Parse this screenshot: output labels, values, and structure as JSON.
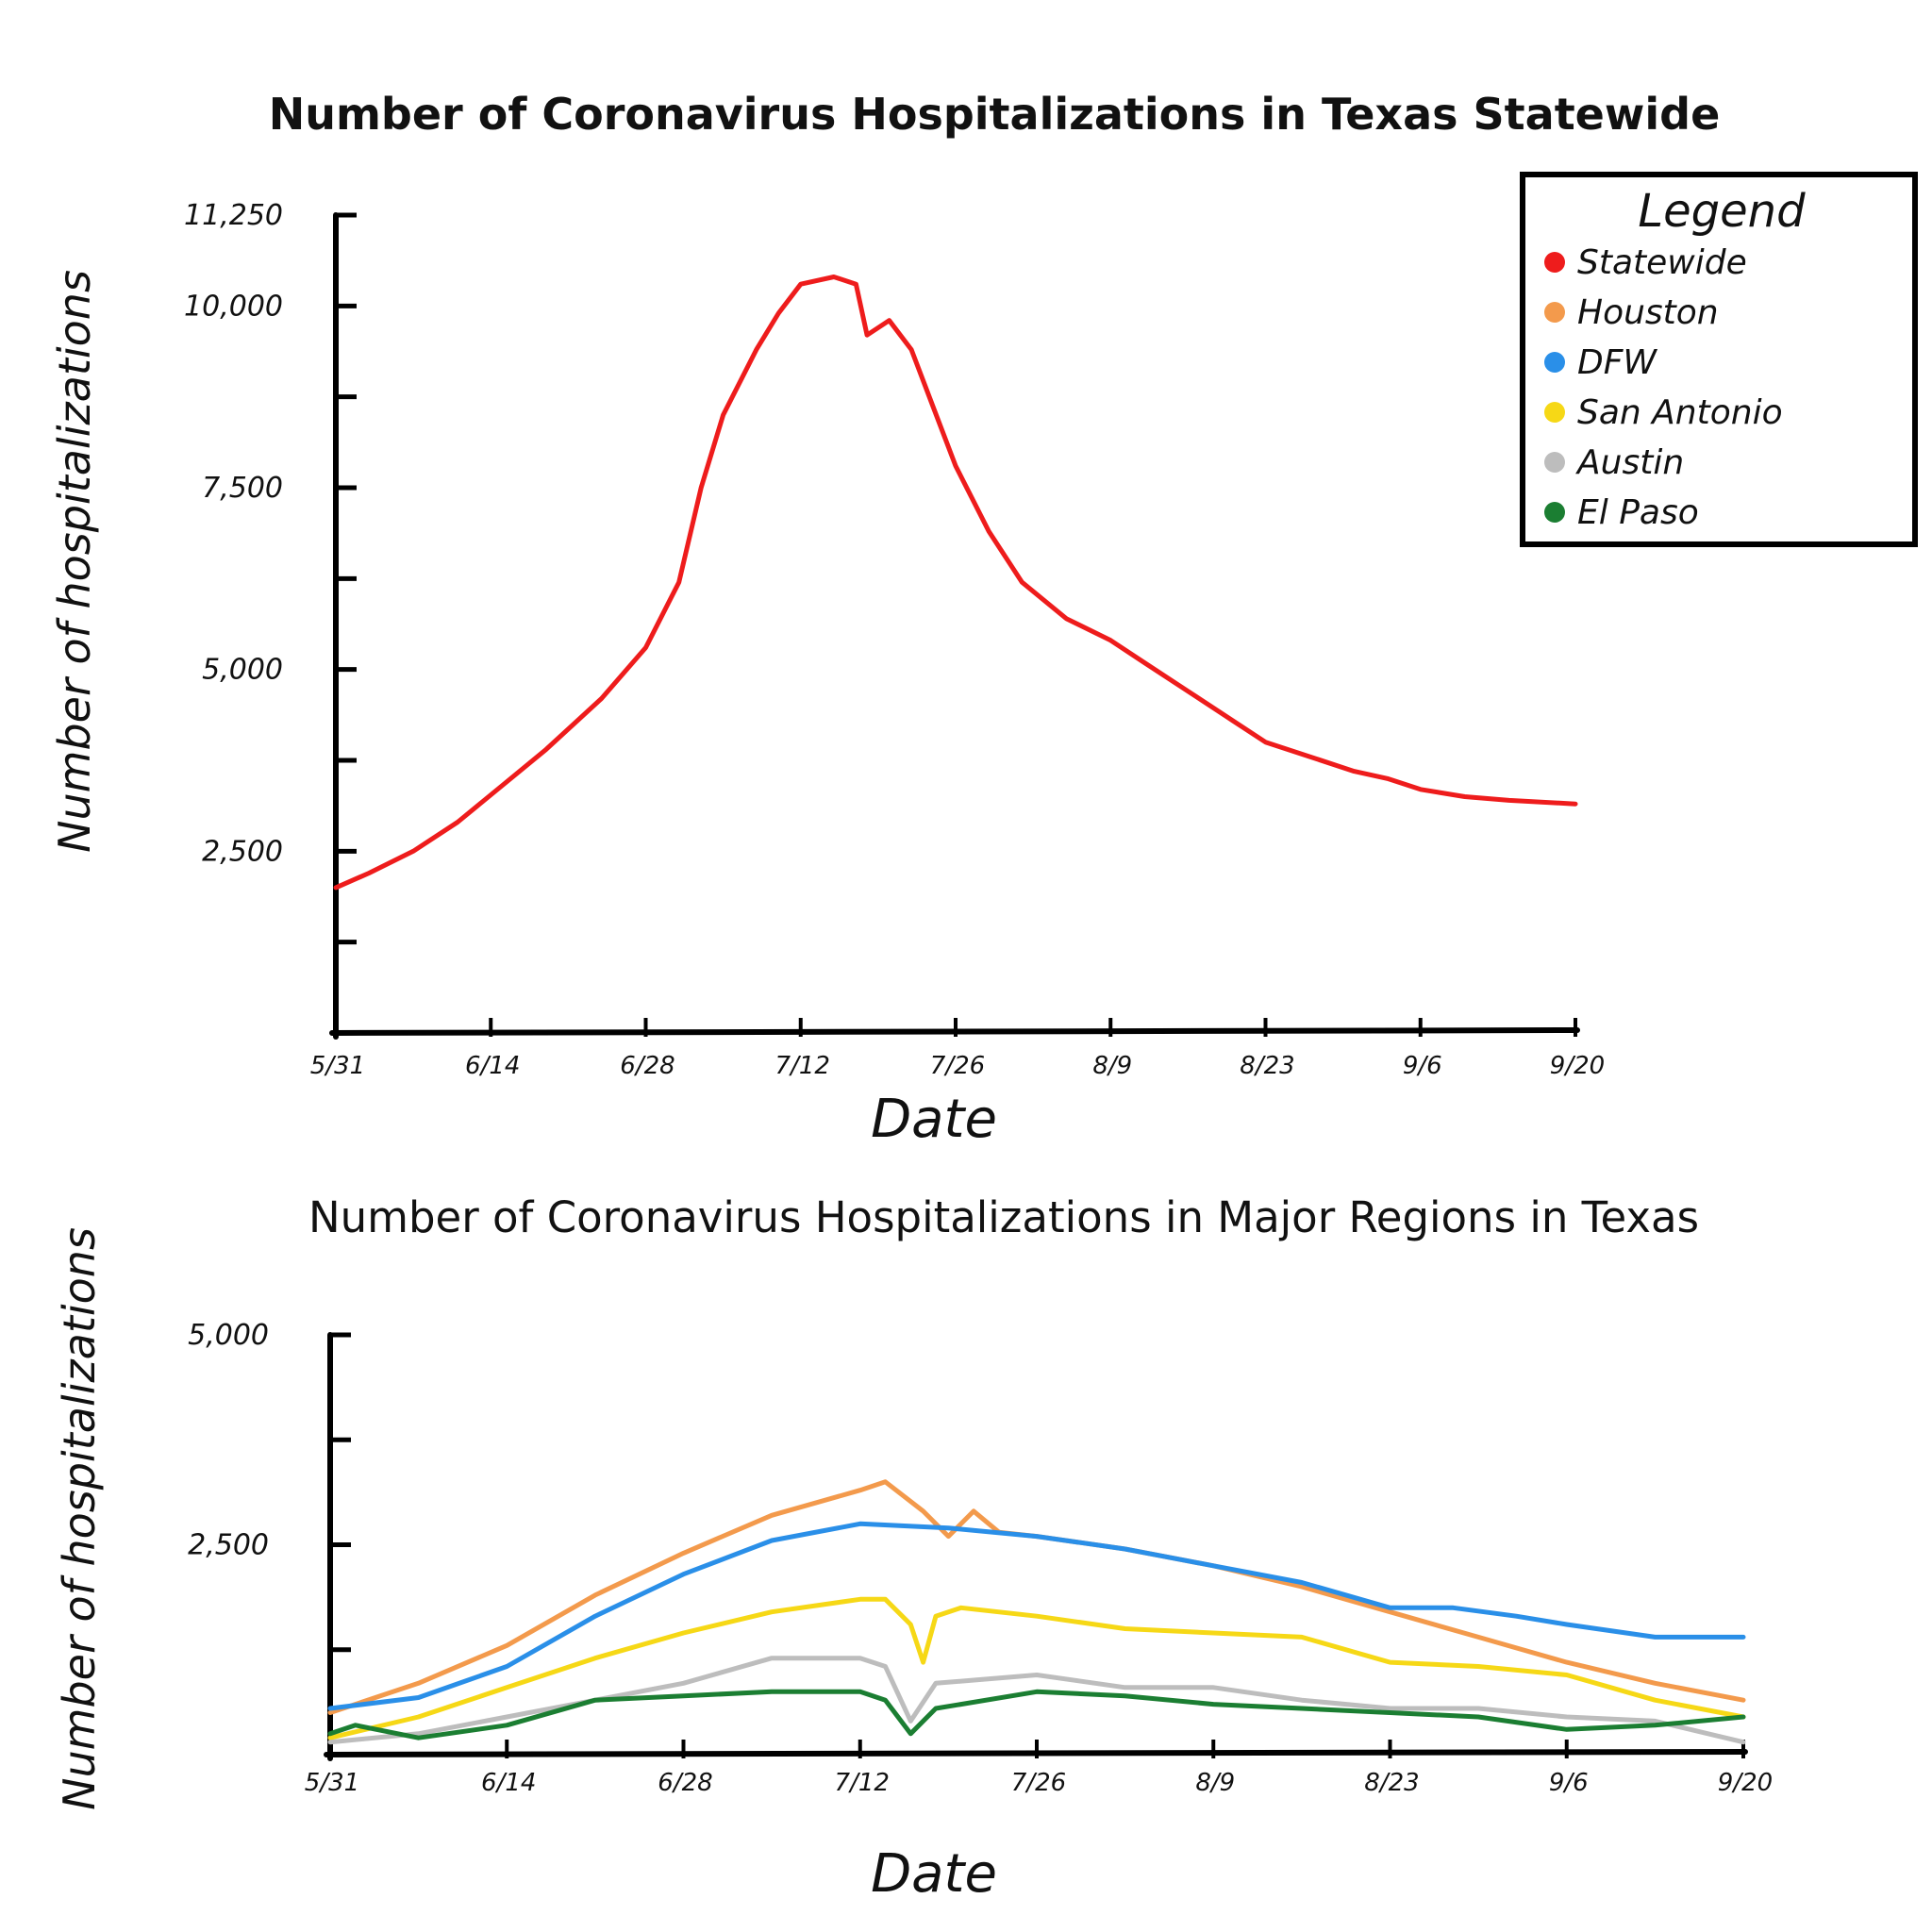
{
  "chart_data": [
    {
      "type": "line",
      "title": "Number of Coronavirus Hospitalizations in Texas Statewide",
      "xlabel": "Date",
      "ylabel": "Number of hospitalizations",
      "x_ticks": [
        "5/31",
        "6/14",
        "6/28",
        "7/12",
        "7/26",
        "8/9",
        "8/23",
        "9/6",
        "9/20"
      ],
      "y_ticks": [
        "2,500",
        "5,000",
        "7,500",
        "10,000",
        "11,250"
      ],
      "y_tick_values": [
        2500,
        5000,
        7500,
        10000,
        11250
      ],
      "ylim": [
        0,
        11250
      ],
      "legend_position": "top-right",
      "series": [
        {
          "name": "Statewide",
          "color": "#ee1c1c",
          "points": [
            [
              "5/31",
              2000
            ],
            [
              "6/3",
              2200
            ],
            [
              "6/7",
              2500
            ],
            [
              "6/11",
              2900
            ],
            [
              "6/15",
              3400
            ],
            [
              "6/19",
              3900
            ],
            [
              "6/24",
              4600
            ],
            [
              "6/28",
              5300
            ],
            [
              "7/1",
              6200
            ],
            [
              "7/3",
              7500
            ],
            [
              "7/5",
              8500
            ],
            [
              "7/8",
              9400
            ],
            [
              "7/10",
              9900
            ],
            [
              "7/12",
              10300
            ],
            [
              "7/15",
              10400
            ],
            [
              "7/17",
              10300
            ],
            [
              "7/18",
              9600
            ],
            [
              "7/20",
              9800
            ],
            [
              "7/22",
              9400
            ],
            [
              "7/24",
              8600
            ],
            [
              "7/26",
              7800
            ],
            [
              "7/29",
              6900
            ],
            [
              "8/1",
              6200
            ],
            [
              "8/5",
              5700
            ],
            [
              "8/9",
              5400
            ],
            [
              "8/12",
              5100
            ],
            [
              "8/16",
              4700
            ],
            [
              "8/20",
              4300
            ],
            [
              "8/23",
              4000
            ],
            [
              "8/27",
              3800
            ],
            [
              "8/31",
              3600
            ],
            [
              "9/3",
              3500
            ],
            [
              "9/6",
              3350
            ],
            [
              "9/10",
              3250
            ],
            [
              "9/14",
              3200
            ],
            [
              "9/20",
              3150
            ]
          ]
        }
      ]
    },
    {
      "type": "line",
      "title": "Number of Coronavirus Hospitalizations in Major Regions in Texas",
      "xlabel": "Date",
      "ylabel": "Number of hospitalizations",
      "x_ticks": [
        "5/31",
        "6/14",
        "6/28",
        "7/12",
        "7/26",
        "8/9",
        "8/23",
        "9/6",
        "9/20"
      ],
      "y_ticks": [
        "2,500",
        "5,000"
      ],
      "y_tick_values": [
        2500,
        5000
      ],
      "ylim": [
        0,
        5000
      ],
      "series": [
        {
          "name": "Houston",
          "color": "#f39a4c",
          "points": [
            [
              "5/31",
              500
            ],
            [
              "6/7",
              850
            ],
            [
              "6/14",
              1300
            ],
            [
              "6/21",
              1900
            ],
            [
              "6/28",
              2400
            ],
            [
              "7/5",
              2850
            ],
            [
              "7/12",
              3150
            ],
            [
              "7/14",
              3250
            ],
            [
              "7/17",
              2900
            ],
            [
              "7/19",
              2600
            ],
            [
              "7/21",
              2900
            ],
            [
              "7/23",
              2650
            ],
            [
              "7/26",
              2600
            ],
            [
              "8/2",
              2450
            ],
            [
              "8/9",
              2250
            ],
            [
              "8/16",
              2000
            ],
            [
              "8/23",
              1700
            ],
            [
              "8/30",
              1400
            ],
            [
              "9/6",
              1100
            ],
            [
              "9/13",
              850
            ],
            [
              "9/20",
              650
            ]
          ]
        },
        {
          "name": "DFW",
          "color": "#2a8fe8",
          "points": [
            [
              "5/31",
              550
            ],
            [
              "6/7",
              680
            ],
            [
              "6/14",
              1050
            ],
            [
              "6/21",
              1650
            ],
            [
              "6/28",
              2150
            ],
            [
              "7/5",
              2550
            ],
            [
              "7/12",
              2750
            ],
            [
              "7/19",
              2700
            ],
            [
              "7/26",
              2600
            ],
            [
              "8/2",
              2450
            ],
            [
              "8/9",
              2250
            ],
            [
              "8/16",
              2050
            ],
            [
              "8/23",
              1750
            ],
            [
              "8/28",
              1750
            ],
            [
              "9/2",
              1650
            ],
            [
              "9/6",
              1550
            ],
            [
              "9/13",
              1400
            ],
            [
              "9/20",
              1400
            ]
          ]
        },
        {
          "name": "San Antonio",
          "color": "#f6d816",
          "points": [
            [
              "5/31",
              200
            ],
            [
              "6/7",
              450
            ],
            [
              "6/14",
              800
            ],
            [
              "6/21",
              1150
            ],
            [
              "6/28",
              1450
            ],
            [
              "7/5",
              1700
            ],
            [
              "7/12",
              1850
            ],
            [
              "7/14",
              1850
            ],
            [
              "7/16",
              1550
            ],
            [
              "7/17",
              1100
            ],
            [
              "7/18",
              1650
            ],
            [
              "7/20",
              1750
            ],
            [
              "7/26",
              1650
            ],
            [
              "8/2",
              1500
            ],
            [
              "8/9",
              1450
            ],
            [
              "8/16",
              1400
            ],
            [
              "8/23",
              1100
            ],
            [
              "8/30",
              1050
            ],
            [
              "9/6",
              950
            ],
            [
              "9/13",
              650
            ],
            [
              "9/20",
              450
            ]
          ]
        },
        {
          "name": "Austin",
          "color": "#bdbdbd",
          "points": [
            [
              "5/31",
              150
            ],
            [
              "6/7",
              250
            ],
            [
              "6/14",
              450
            ],
            [
              "6/21",
              650
            ],
            [
              "6/28",
              850
            ],
            [
              "7/5",
              1150
            ],
            [
              "7/12",
              1150
            ],
            [
              "7/14",
              1050
            ],
            [
              "7/16",
              400
            ],
            [
              "7/18",
              850
            ],
            [
              "7/26",
              950
            ],
            [
              "8/2",
              800
            ],
            [
              "8/9",
              800
            ],
            [
              "8/16",
              650
            ],
            [
              "8/23",
              550
            ],
            [
              "8/30",
              550
            ],
            [
              "9/6",
              450
            ],
            [
              "9/13",
              400
            ],
            [
              "9/20",
              150
            ]
          ]
        },
        {
          "name": "El Paso",
          "color": "#1b7e32",
          "points": [
            [
              "5/31",
              250
            ],
            [
              "6/2",
              350
            ],
            [
              "6/7",
              200
            ],
            [
              "6/14",
              350
            ],
            [
              "6/21",
              650
            ],
            [
              "6/28",
              700
            ],
            [
              "7/5",
              750
            ],
            [
              "7/12",
              750
            ],
            [
              "7/14",
              650
            ],
            [
              "7/16",
              250
            ],
            [
              "7/18",
              550
            ],
            [
              "7/26",
              750
            ],
            [
              "8/2",
              700
            ],
            [
              "8/9",
              600
            ],
            [
              "8/16",
              550
            ],
            [
              "8/23",
              500
            ],
            [
              "8/30",
              450
            ],
            [
              "9/6",
              300
            ],
            [
              "9/13",
              350
            ],
            [
              "9/20",
              450
            ]
          ]
        }
      ]
    }
  ],
  "legend": {
    "title": "Legend",
    "items": [
      {
        "label": "Statewide",
        "color": "#ee1c1c"
      },
      {
        "label": "Houston",
        "color": "#f39a4c"
      },
      {
        "label": "DFW",
        "color": "#2a8fe8"
      },
      {
        "label": "San Antonio",
        "color": "#f6d816"
      },
      {
        "label": "Austin",
        "color": "#bdbdbd"
      },
      {
        "label": "El Paso",
        "color": "#1b7e32"
      }
    ]
  }
}
